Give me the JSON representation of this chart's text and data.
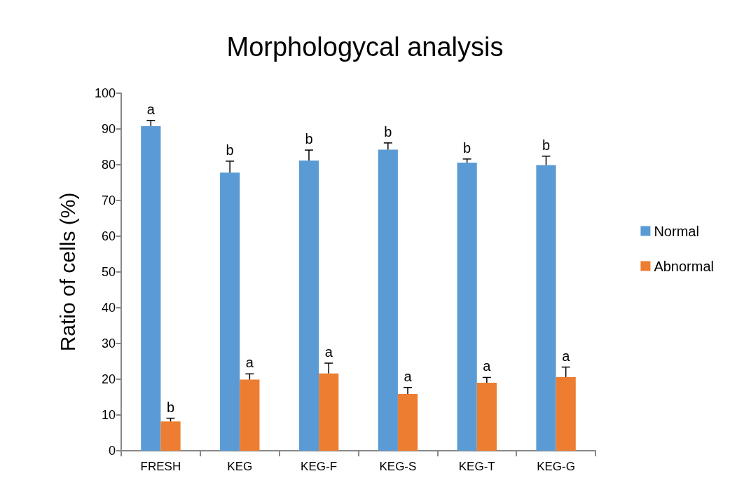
{
  "chart_data": {
    "type": "bar",
    "title": "Morphologycal analysis",
    "ylabel": "Ratio of cells (%)",
    "categories": [
      "FRESH",
      "KEG",
      "KEG-F",
      "KEG-S",
      "KEG-T",
      "KEG-G"
    ],
    "series": [
      {
        "name": "Normal",
        "color": "#5b9bd5",
        "values": [
          90.8,
          77.8,
          81.2,
          84.2,
          80.6,
          79.9
        ],
        "errors": [
          1.6,
          3.2,
          2.9,
          1.9,
          1.0,
          2.5
        ]
      },
      {
        "name": "Abnormal",
        "color": "#ed7d31",
        "values": [
          8.2,
          19.9,
          21.6,
          15.9,
          19.0,
          20.6
        ],
        "errors": [
          0.9,
          1.6,
          2.9,
          1.8,
          1.5,
          2.8
        ]
      }
    ],
    "annotations": [
      {
        "text": "a",
        "x": "FRESH",
        "y": 90.8
      },
      {
        "text": "b",
        "x": "KEG",
        "y": 77.8
      },
      {
        "text": "b",
        "x": "KEG-F",
        "y": 81.2
      },
      {
        "text": "b",
        "x": "KEG-S",
        "y": 84.2
      },
      {
        "text": "b",
        "x": "KEG-T",
        "y": 80.6
      },
      {
        "text": "b",
        "x": "KEG-G",
        "y": 79.9
      },
      {
        "text": "b",
        "x": "FRESH",
        "y": 8.2
      },
      {
        "text": "a",
        "x": "KEG",
        "y": 19.9
      },
      {
        "text": "a",
        "x": "KEG-F",
        "y": 21.6
      },
      {
        "text": "a",
        "x": "KEG-S",
        "y": 15.9
      },
      {
        "text": "a",
        "x": "KEG-T",
        "y": 19.0
      },
      {
        "text": "a",
        "x": "KEG-G",
        "y": 20.6
      }
    ],
    "ylim": [
      0,
      100
    ],
    "yticks": [
      0,
      10,
      20,
      30,
      40,
      50,
      60,
      70,
      80,
      90,
      100
    ],
    "grid": false,
    "legend": "right"
  }
}
